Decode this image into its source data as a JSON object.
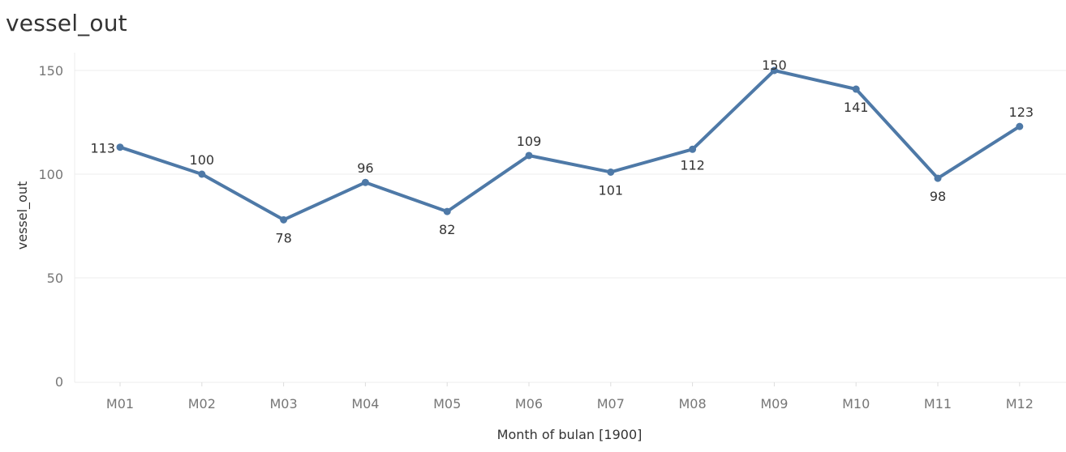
{
  "chart_data": {
    "type": "line",
    "title": "vessel_out",
    "xlabel": "Month of bulan [1900]",
    "ylabel": "vessel_out",
    "categories": [
      "M01",
      "M02",
      "M03",
      "M04",
      "M05",
      "M06",
      "M07",
      "M08",
      "M09",
      "M10",
      "M11",
      "M12"
    ],
    "series": [
      {
        "values": [
          113,
          100,
          78,
          96,
          82,
          109,
          101,
          112,
          150,
          141,
          98,
          123
        ]
      }
    ],
    "ylim": [
      0,
      160
    ],
    "yticks": [
      0,
      50,
      100,
      150
    ],
    "grid": true,
    "show_data_labels": true,
    "legend": "none",
    "colors": {
      "line": "#4e79a7",
      "grid": "#ececec"
    }
  }
}
